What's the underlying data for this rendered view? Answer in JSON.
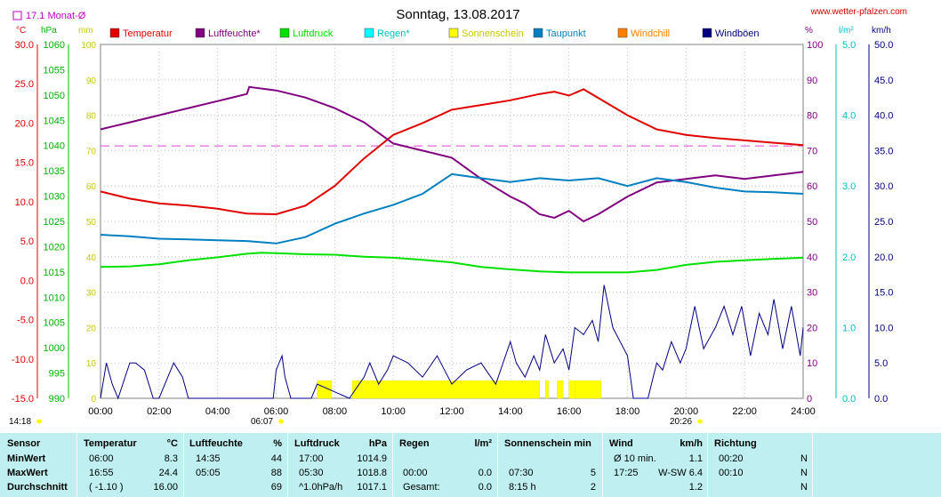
{
  "header": {
    "title": "Sonntag, 13.08.2017",
    "url": "www.wetter-pfalzen.com",
    "month_avg_label": "17.1 Monat-Ø"
  },
  "units": {
    "temp": "°C",
    "pressure": "hPa",
    "mm": "mm",
    "percent": "%",
    "rain": "l/m²",
    "wind": "km/h"
  },
  "legend": [
    {
      "label": "Temperatur",
      "color": "#e00000"
    },
    {
      "label": "Luftfeuchte*",
      "color": "#800080"
    },
    {
      "label": "Luftdruck",
      "color": "#00e000"
    },
    {
      "label": "Regen*",
      "color": "#00ffff"
    },
    {
      "label": "Sonnenschein",
      "color": "#ffff00"
    },
    {
      "label": "Taupunkt",
      "color": "#0080c0"
    },
    {
      "label": "Windchill",
      "color": "#ff8000"
    },
    {
      "label": "Windböen",
      "color": "#000080"
    }
  ],
  "times": {
    "sunrise_label": "06:07",
    "sunset_label": "20:26",
    "daylight_label": "14:18"
  },
  "chart_data": {
    "type": "line",
    "title": "Sonntag, 13.08.2017",
    "x_ticks": [
      "00:00",
      "02:00",
      "04:00",
      "06:00",
      "08:00",
      "10:00",
      "12:00",
      "14:00",
      "16:00",
      "18:00",
      "20:00",
      "22:00",
      "24:00"
    ],
    "axes": {
      "temp_c": {
        "range": [
          -15,
          30
        ],
        "ticks": [
          "30.0",
          "25.0",
          "20.0",
          "15.0",
          "10.0",
          "5.0",
          "0.0",
          "-5.0",
          "-10.0",
          "-15.0"
        ]
      },
      "pressure_hpa": {
        "range": [
          990,
          1060
        ],
        "ticks": [
          "1060",
          "1055",
          "1050",
          "1045",
          "1040",
          "1035",
          "1030",
          "1025",
          "1020",
          "1015",
          "1010",
          "1005",
          "1000",
          "995",
          "990"
        ]
      },
      "mm": {
        "range": [
          0,
          100
        ],
        "ticks": [
          "100",
          "90",
          "80",
          "70",
          "60",
          "50",
          "40",
          "30",
          "20",
          "10",
          "0"
        ]
      },
      "percent": {
        "range": [
          0,
          100
        ],
        "ticks": [
          "100",
          "90",
          "80",
          "70",
          "60",
          "50",
          "40",
          "30",
          "20",
          "10",
          "0"
        ]
      },
      "rain_lm2": {
        "range": [
          0,
          5
        ],
        "ticks": [
          "5.0",
          "4.0",
          "3.0",
          "2.0",
          "1.0",
          "0.0"
        ]
      },
      "wind_kmh": {
        "range": [
          0,
          50
        ],
        "ticks": [
          "50.0",
          "45.0",
          "40.0",
          "35.0",
          "30.0",
          "25.0",
          "20.0",
          "15.0",
          "10.0",
          "5.0",
          "0.0"
        ]
      }
    },
    "month_avg_temp": 17.1,
    "series": [
      {
        "name": "Temperatur",
        "unit": "°C",
        "color": "#e00000",
        "x": [
          0,
          1,
          2,
          3,
          4,
          5,
          6,
          7,
          8,
          9,
          10,
          11,
          12,
          13,
          14,
          15,
          15.5,
          16,
          16.5,
          17,
          18,
          19,
          20,
          21,
          22,
          23,
          24
        ],
        "values": [
          11.3,
          10.4,
          9.8,
          9.5,
          9.1,
          8.5,
          8.4,
          9.5,
          12.0,
          15.5,
          18.5,
          20.0,
          21.7,
          22.3,
          22.9,
          23.7,
          24.0,
          23.5,
          24.3,
          23.2,
          21.0,
          19.2,
          18.5,
          18.1,
          17.8,
          17.5,
          17.2
        ]
      },
      {
        "name": "Luftfeuchte*",
        "unit": "%",
        "color": "#800080",
        "x": [
          0,
          1,
          2,
          3,
          4,
          5,
          5.08,
          6,
          7,
          8,
          9,
          10,
          11,
          12,
          13,
          14,
          14.5,
          15,
          15.5,
          16,
          16.5,
          17,
          18,
          19,
          20,
          21,
          22,
          23,
          24
        ],
        "values": [
          76,
          78,
          80,
          82,
          84,
          86,
          88,
          87,
          85,
          82,
          78,
          72,
          70,
          68,
          62,
          57,
          55,
          52,
          51,
          53,
          50,
          52,
          57,
          61,
          62,
          63,
          62,
          63,
          64
        ]
      },
      {
        "name": "Luftdruck",
        "unit": "hPa",
        "color": "#00e000",
        "x": [
          0,
          1,
          2,
          3,
          4,
          5,
          5.5,
          6,
          7,
          8,
          9,
          10,
          11,
          12,
          13,
          14,
          15,
          16,
          17,
          18,
          19,
          20,
          21,
          22,
          23,
          24
        ],
        "values": [
          1016.0,
          1016.1,
          1016.5,
          1017.3,
          1017.9,
          1018.6,
          1018.8,
          1018.7,
          1018.5,
          1018.4,
          1018.0,
          1017.8,
          1017.4,
          1016.9,
          1016.0,
          1015.5,
          1015.1,
          1014.9,
          1014.9,
          1014.9,
          1015.4,
          1016.4,
          1017.0,
          1017.3,
          1017.6,
          1017.8
        ]
      },
      {
        "name": "Taupunkt",
        "unit": "°C",
        "color": "#0080c0",
        "x": [
          0,
          1,
          2,
          3,
          4,
          5,
          6,
          7,
          8,
          9,
          10,
          11,
          12,
          13,
          14,
          15,
          16,
          17,
          18,
          19,
          20,
          21,
          22,
          23,
          24
        ],
        "values": [
          5.8,
          5.6,
          5.3,
          5.2,
          5.1,
          5.0,
          4.7,
          5.5,
          7.2,
          8.5,
          9.6,
          11.0,
          13.5,
          13.0,
          12.5,
          13.0,
          12.7,
          13.0,
          12.0,
          13.0,
          12.5,
          11.8,
          11.3,
          11.2,
          11.0
        ]
      },
      {
        "name": "Windböen",
        "unit": "km/h",
        "color": "#000080",
        "x": [
          0,
          0.2,
          0.4,
          0.6,
          1,
          1.2,
          1.5,
          1.8,
          2,
          2.5,
          2.8,
          3,
          3.2,
          3.4,
          3.6,
          5.9,
          6,
          6.2,
          6.3,
          6.5,
          7.2,
          7.4,
          8.5,
          9,
          9.2,
          9.5,
          9.8,
          10,
          10.5,
          11,
          11.5,
          12,
          12.5,
          13,
          13.5,
          14,
          14.2,
          14.5,
          14.8,
          15,
          15.2,
          15.5,
          15.8,
          16,
          16.2,
          16.5,
          16.8,
          17,
          17.2,
          17.5,
          18,
          18.2,
          18.5,
          18.7,
          19,
          19.2,
          19.5,
          19.8,
          20,
          20.3,
          20.6,
          21,
          21.3,
          21.6,
          21.9,
          22.2,
          22.5,
          22.8,
          23,
          23.3,
          23.6,
          23.9,
          24
        ],
        "values": [
          0,
          5,
          2,
          0,
          5,
          5,
          4,
          0,
          0,
          5,
          3,
          0,
          0,
          0,
          0,
          0,
          4,
          6,
          3,
          0,
          0,
          2,
          0,
          3,
          5,
          2,
          4,
          6,
          5,
          3,
          6,
          2,
          4,
          5,
          2,
          8,
          5,
          3,
          6,
          4,
          9,
          5,
          7,
          4,
          10,
          9,
          11,
          8,
          16,
          10,
          6,
          0,
          0,
          0,
          5,
          4,
          8,
          5,
          7,
          13,
          7,
          10,
          13,
          9,
          13,
          6,
          12,
          9,
          14,
          7,
          13,
          6,
          10
        ]
      },
      {
        "name": "Sonnenschein",
        "unit": "min",
        "color": "#ffff00",
        "x": [
          7.4,
          7.9,
          8.6,
          15.0,
          15.2,
          15.3,
          15.6,
          15.8,
          16.0,
          16.2,
          17.1
        ],
        "values": [
          5,
          0,
          5,
          0,
          5,
          0,
          5,
          0,
          5,
          5,
          0
        ]
      }
    ]
  },
  "stats": {
    "headers": {
      "sensor": "Sensor",
      "temperatur": "Temperatur",
      "temp_unit": "°C",
      "luftfeuchte": "Luftfeuchte",
      "lf_unit": "%",
      "luftdruck": "Luftdruck",
      "ld_unit": "hPa",
      "regen": "Regen",
      "regen_unit": "l/m²",
      "sonnenschein": "Sonnenschein min",
      "wind": "Wind",
      "wind_unit": "km/h",
      "richtung": "Richtung"
    },
    "rows": [
      {
        "label": "MinWert",
        "t_time": "06:00",
        "t_val": "8.3",
        "h_time": "14:35",
        "h_val": "44",
        "p_time": "17:00",
        "p_val": "1014.9",
        "r_time": "",
        "r_val": "",
        "s_time": "",
        "s_val": "",
        "w_time": "Ø 10 min.",
        "w_val": "1.1",
        "d_time": "00:20",
        "d_val": "N"
      },
      {
        "label": "MaxWert",
        "t_time": "16:55",
        "t_val": "24.4",
        "h_time": "05:05",
        "h_val": "88",
        "p_time": "05:30",
        "p_val": "1018.8",
        "r_time": "00:00",
        "r_val": "0.0",
        "s_time": "07:30",
        "s_val": "5",
        "w_time": "17:25",
        "w_val": "W-SW 6.4",
        "d_time": "00:10",
        "d_val": "N"
      },
      {
        "label": "Durchschnitt",
        "t_time": "( -1.10 )",
        "t_val": "16.00",
        "h_time": "",
        "h_val": "69",
        "p_time": "^1.0hPa/h",
        "p_val": "1017.1",
        "r_time": "Gesamt:",
        "r_val": "0.0",
        "s_time": "8:15 h",
        "s_val": "2",
        "w_time": "",
        "w_val": "1.2",
        "d_time": "",
        "d_val": "N"
      }
    ]
  }
}
